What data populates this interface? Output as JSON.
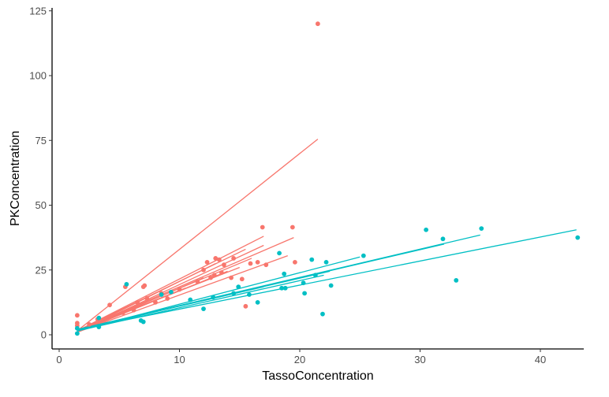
{
  "chart_data": {
    "type": "scatter",
    "xlabel": "TassoConcentration",
    "ylabel": "PKConcentration",
    "xlim": [
      0,
      44
    ],
    "ylim": [
      0,
      126
    ],
    "x_ticks": [
      0,
      10,
      20,
      30,
      40
    ],
    "y_ticks": [
      0,
      25,
      50,
      75,
      100,
      125
    ],
    "grid": false,
    "legend": "none",
    "colors": {
      "series_a": "#F8766D",
      "series_b": "#00BFC4"
    },
    "series": [
      {
        "color": "#F8766D",
        "points": [
          [
            1.5,
            4.5
          ],
          [
            1.5,
            7.5
          ],
          [
            1.5,
            3.5
          ],
          [
            2.5,
            4.0
          ],
          [
            3.2,
            6.0
          ],
          [
            4.2,
            11.5
          ],
          [
            5.3,
            8.5
          ],
          [
            5.5,
            18.5
          ],
          [
            6.2,
            9.5
          ],
          [
            6.5,
            12.5
          ],
          [
            7.0,
            18.5
          ],
          [
            7.1,
            19.0
          ],
          [
            7.3,
            14.0
          ],
          [
            8.0,
            12.5
          ],
          [
            8.5,
            16.0
          ],
          [
            9.0,
            14.0
          ],
          [
            10.0,
            17.5
          ],
          [
            11.5,
            20.5
          ],
          [
            12.0,
            25.0
          ],
          [
            12.3,
            28.0
          ],
          [
            12.6,
            22.0
          ],
          [
            12.9,
            23.0
          ],
          [
            13.0,
            29.5
          ],
          [
            13.3,
            29.0
          ],
          [
            13.5,
            24.0
          ],
          [
            13.7,
            27.0
          ],
          [
            14.3,
            22.0
          ],
          [
            14.5,
            29.5
          ],
          [
            15.2,
            21.5
          ],
          [
            15.5,
            11.0
          ],
          [
            15.9,
            27.5
          ],
          [
            16.5,
            28.0
          ],
          [
            16.9,
            41.5
          ],
          [
            17.2,
            27.0
          ],
          [
            19.4,
            41.5
          ],
          [
            19.6,
            28.0
          ],
          [
            21.5,
            120.0
          ]
        ],
        "fits": [
          [
            1.5,
            1.5,
            21.5,
            75.5
          ],
          [
            1.5,
            1.5,
            17.0,
            38.0
          ],
          [
            1.5,
            1.5,
            19.5,
            37.5
          ],
          [
            1.5,
            1.0,
            17.0,
            34.5
          ],
          [
            1.5,
            1.5,
            15.5,
            33.0
          ],
          [
            1.5,
            1.0,
            19.0,
            30.5
          ],
          [
            1.5,
            1.5,
            16.0,
            29.5
          ],
          [
            1.5,
            1.0,
            13.0,
            27.5
          ],
          [
            1.5,
            1.5,
            15.0,
            26.0
          ],
          [
            1.5,
            1.0,
            14.0,
            24.5
          ],
          [
            1.5,
            1.0,
            12.0,
            22.0
          ],
          [
            1.5,
            1.5,
            10.5,
            18.0
          ]
        ]
      },
      {
        "color": "#00BFC4",
        "points": [
          [
            1.5,
            0.5
          ],
          [
            1.5,
            2.5
          ],
          [
            3.3,
            3.0
          ],
          [
            3.3,
            6.5
          ],
          [
            5.6,
            19.5
          ],
          [
            6.8,
            5.5
          ],
          [
            7.0,
            5.0
          ],
          [
            8.5,
            15.5
          ],
          [
            9.3,
            16.5
          ],
          [
            10.9,
            13.5
          ],
          [
            12.0,
            10.0
          ],
          [
            12.8,
            14.5
          ],
          [
            14.5,
            16.0
          ],
          [
            14.9,
            18.5
          ],
          [
            15.8,
            15.5
          ],
          [
            16.5,
            12.5
          ],
          [
            18.3,
            31.5
          ],
          [
            18.5,
            18.0
          ],
          [
            18.7,
            23.5
          ],
          [
            18.8,
            18.0
          ],
          [
            20.3,
            20.0
          ],
          [
            20.4,
            16.0
          ],
          [
            21.0,
            29.0
          ],
          [
            21.3,
            23.0
          ],
          [
            21.9,
            8.0
          ],
          [
            22.2,
            28.0
          ],
          [
            22.6,
            19.0
          ],
          [
            25.3,
            30.5
          ],
          [
            30.5,
            40.5
          ],
          [
            31.9,
            37.0
          ],
          [
            33.0,
            21.0
          ],
          [
            35.1,
            41.0
          ],
          [
            43.1,
            37.5
          ]
        ],
        "fits": [
          [
            1.5,
            2.0,
            43.0,
            40.5
          ],
          [
            1.5,
            2.0,
            35.0,
            38.5
          ],
          [
            1.5,
            2.0,
            32.0,
            35.0
          ],
          [
            1.5,
            1.5,
            25.0,
            30.0
          ],
          [
            1.5,
            2.0,
            22.5,
            24.5
          ],
          [
            1.5,
            1.5,
            22.0,
            23.0
          ],
          [
            1.5,
            2.0,
            20.0,
            22.0
          ],
          [
            1.5,
            2.0,
            17.0,
            18.5
          ],
          [
            1.5,
            1.5,
            12.5,
            14.0
          ]
        ]
      }
    ]
  }
}
